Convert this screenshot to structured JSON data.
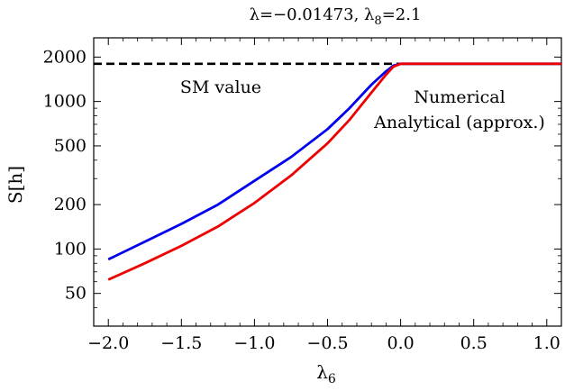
{
  "chart_data": {
    "type": "line",
    "title": "λ=−0.01473,  λ",
    "title_sub": "8",
    "title_tail": "=2.1",
    "xlabel": "λ",
    "xlabel_sub": "6",
    "ylabel": "S[h]",
    "xlim": [
      -2.1,
      1.1
    ],
    "ylim": [
      30,
      2700
    ],
    "yscale": "log",
    "x_ticks": [
      -2.0,
      -1.5,
      -1.0,
      -0.5,
      0.0,
      0.5,
      1.0
    ],
    "x_tick_labels": [
      "−2.0",
      "−1.5",
      "−1.0",
      "−0.5",
      "0.0",
      "0.5",
      "1.0"
    ],
    "y_ticks": [
      50,
      100,
      200,
      500,
      1000,
      2000
    ],
    "y_tick_labels": [
      "50",
      "100",
      "200",
      "500",
      "1000",
      "2000"
    ],
    "reference_line": {
      "label": "SM value",
      "y": 1800,
      "x_range": [
        -2.1,
        0.0
      ],
      "color": "#000000",
      "style": "dashed"
    },
    "series": [
      {
        "name": "Numerical",
        "color": "#0000ee",
        "x": [
          -2.0,
          -1.75,
          -1.5,
          -1.25,
          -1.0,
          -0.75,
          -0.5,
          -0.35,
          -0.2,
          -0.1,
          -0.05,
          0.0,
          0.5,
          1.1
        ],
        "y": [
          85,
          112,
          148,
          200,
          290,
          420,
          650,
          900,
          1300,
          1600,
          1750,
          1800,
          1800,
          1800
        ]
      },
      {
        "name": "Analytical (approx.)",
        "color": "#ee0000",
        "x": [
          -2.0,
          -1.75,
          -1.5,
          -1.25,
          -1.0,
          -0.75,
          -0.5,
          -0.35,
          -0.2,
          -0.1,
          -0.05,
          0.0,
          0.5,
          1.1
        ],
        "y": [
          62,
          80,
          105,
          142,
          205,
          315,
          520,
          750,
          1150,
          1520,
          1720,
          1800,
          1800,
          1800
        ]
      }
    ]
  }
}
